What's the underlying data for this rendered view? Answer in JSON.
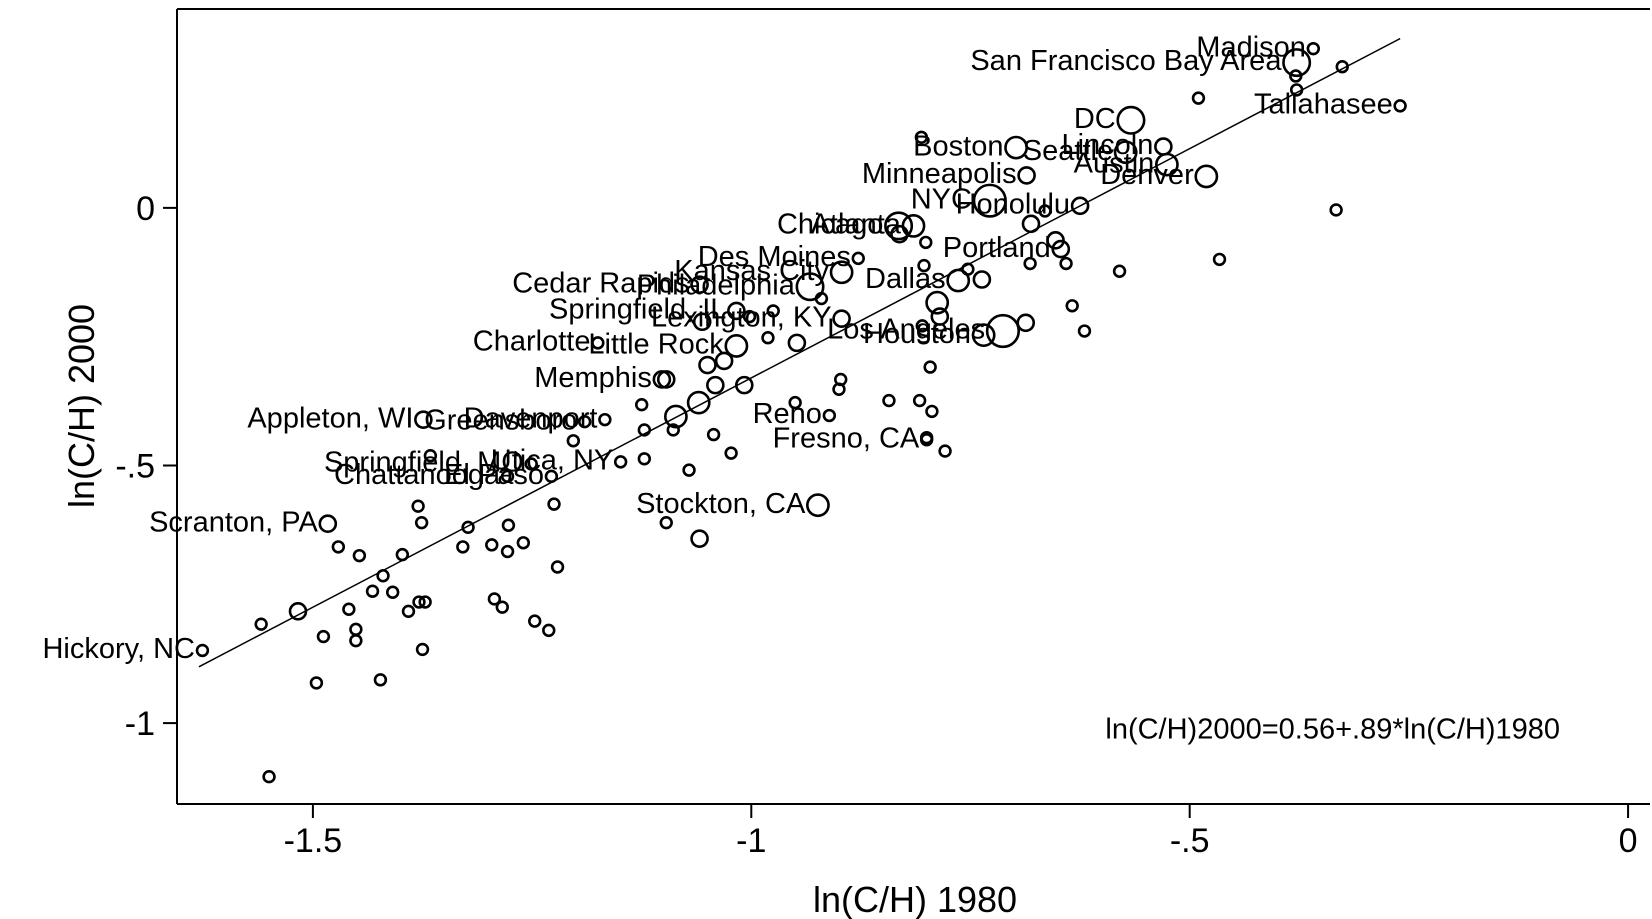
{
  "chart_data": {
    "type": "scatter",
    "x_label": "ln(C/H) 1980",
    "y_label": "ln(C/H) 2000",
    "annotation": "ln(C/H)2000=0.56+.89*ln(C/H)1980",
    "xlim": [
      -1.655,
      0.025
    ],
    "ylim": [
      -1.157,
      0.386
    ],
    "xticks": [
      -1.5,
      -1,
      {
        "value": -0.5,
        "label": "-.5"
      },
      0
    ],
    "yticks": [
      0,
      {
        "value": -0.5,
        "label": "-.5"
      },
      -1
    ],
    "color": "#000000",
    "fit": {
      "intercept": 0.56,
      "slope": 0.89,
      "xlim": [
        -1.63,
        -0.26
      ]
    },
    "points": {
      "labels": [
        "Hickory, NC",
        "Scranton, PA",
        "Chattanooga",
        "Springfield, MO",
        "Utica, NY",
        "El Paso",
        "Appleton, WI",
        "Greensboro",
        "Davenport",
        "Memphis",
        "Charlotte",
        "Little Rock",
        "Lexington, KY",
        "Springfield, IL",
        "Cedar Rapids",
        "Philadelphia",
        "Kansas City",
        "Des Moines",
        "Dallas",
        "Portland",
        "Los Angeles",
        "Houston",
        "Reno",
        "Fresno, CA",
        "Stockton, CA",
        "Atlanta",
        "Chicago",
        "Honolulu",
        "NYC",
        "Minneapolis",
        "Boston",
        "Seattle",
        "Lincoln",
        "Austin",
        "Denver",
        "DC",
        "San Francisco Bay Area",
        "Madison",
        "Tallahasee",
        null,
        null,
        null,
        null,
        null,
        null,
        null,
        null,
        null,
        null,
        null,
        null,
        null,
        null,
        null,
        null,
        null,
        null,
        null,
        null,
        null,
        null,
        null,
        null,
        null,
        null,
        null,
        null,
        null,
        null,
        null,
        null,
        null,
        null,
        null,
        null,
        null,
        null,
        null,
        null,
        null,
        null,
        null,
        null,
        null,
        null,
        null,
        null,
        null,
        null,
        null,
        null,
        null,
        null,
        null,
        null,
        null,
        null,
        null,
        null,
        null,
        null,
        null,
        null,
        null,
        null,
        null,
        null,
        null,
        null,
        null,
        null,
        null,
        null,
        null,
        null,
        null,
        null,
        null,
        null,
        null,
        null,
        null,
        null
      ],
      "x": [
        -1.626,
        -1.483,
        -1.278,
        -1.251,
        -1.149,
        -1.228,
        -1.374,
        -1.19,
        -1.167,
        -1.102,
        -1.175,
        -1.017,
        -0.897,
        -1.017,
        -1.059,
        -0.933,
        -0.897,
        -0.878,
        -0.764,
        -0.647,
        -0.713,
        -0.735,
        -0.911,
        -0.8,
        -0.924,
        -0.815,
        -0.832,
        -0.625,
        -0.728,
        -0.686,
        -0.698,
        -0.573,
        -0.53,
        -0.526,
        -0.481,
        -0.567,
        -0.378,
        -0.359,
        -0.26,
        -1.559,
        -1.517,
        -1.496,
        -1.488,
        -1.471,
        -1.447,
        -1.459,
        -1.451,
        -1.451,
        -1.423,
        -1.432,
        -1.42,
        -1.409,
        -1.398,
        -1.391,
        -1.379,
        -1.372,
        -1.375,
        -1.376,
        -1.38,
        -1.366,
        -1.329,
        -1.323,
        -1.296,
        -1.293,
        -1.284,
        -1.278,
        -1.277,
        -1.26,
        -1.247,
        -1.231,
        -1.221,
        -1.225,
        -1.203,
        -1.125,
        -1.122,
        -1.122,
        -1.097,
        -1.089,
        -1.071,
        -1.059,
        -1.043,
        -1.023,
        -0.95,
        -0.898,
        -0.9,
        -0.843,
        -0.808,
        -0.794,
        -0.779,
        -0.8,
        -0.796,
        -0.805,
        -0.803,
        -0.806,
        -0.634,
        -0.62,
        -0.58,
        -0.466,
        -0.333,
        -0.49,
        -0.326,
        -0.379,
        -0.378,
        -0.681,
        -0.665,
        -0.653,
        -0.641,
        -0.682,
        -0.687,
        -0.737,
        -0.753,
        -0.788,
        -0.785,
        -0.831,
        -0.801,
        -0.981,
        -0.948,
        -1.008,
        -1.031,
        -1.041,
        -1.06,
        -1.05,
        -1.097,
        -1.086,
        -1.056,
        -1.002,
        -0.975,
        -0.92,
        -1.55
      ],
      "y": [
        -0.859,
        -0.613,
        -0.521,
        -0.497,
        -0.493,
        -0.521,
        -0.411,
        -0.415,
        -0.411,
        -0.333,
        -0.262,
        -0.268,
        -0.215,
        -0.2,
        -0.149,
        -0.153,
        -0.125,
        -0.098,
        -0.141,
        -0.08,
        -0.239,
        -0.247,
        -0.403,
        -0.45,
        -0.577,
        -0.035,
        -0.035,
        0.004,
        0.014,
        0.063,
        0.117,
        0.108,
        0.119,
        0.084,
        0.061,
        0.17,
        0.282,
        0.309,
        0.198,
        -0.808,
        -0.783,
        -0.922,
        -0.832,
        -0.658,
        -0.675,
        -0.779,
        -0.818,
        -0.84,
        -0.916,
        -0.744,
        -0.714,
        -0.746,
        -0.673,
        -0.783,
        -0.765,
        -0.765,
        -0.857,
        -0.611,
        -0.579,
        -0.481,
        -0.658,
        -0.62,
        -0.654,
        -0.759,
        -0.775,
        -0.667,
        -0.616,
        -0.65,
        -0.802,
        -0.82,
        -0.697,
        -0.575,
        -0.452,
        -0.382,
        -0.431,
        -0.487,
        -0.611,
        -0.431,
        -0.509,
        -0.642,
        -0.44,
        -0.476,
        -0.378,
        -0.333,
        -0.352,
        -0.374,
        -0.374,
        -0.395,
        -0.472,
        -0.446,
        -0.309,
        -0.229,
        -0.112,
        0.137,
        -0.19,
        -0.239,
        -0.123,
        -0.1,
        -0.004,
        0.213,
        0.274,
        0.256,
        0.229,
        -0.031,
        -0.006,
        -0.063,
        -0.108,
        -0.108,
        -0.223,
        -0.139,
        -0.119,
        -0.184,
        -0.211,
        -0.051,
        -0.067,
        -0.252,
        -0.262,
        -0.344,
        -0.297,
        -0.344,
        -0.378,
        -0.305,
        -0.333,
        -0.405,
        -0.221,
        -0.211,
        -0.2,
        -0.176,
        -1.104
      ],
      "weights": [
        1,
        2,
        1,
        1,
        1,
        1,
        2,
        1,
        1,
        2,
        1,
        3,
        2,
        2,
        2,
        4,
        3,
        1,
        3,
        2,
        5,
        3,
        1,
        1,
        3,
        3,
        4,
        2,
        5,
        2,
        3,
        3,
        2,
        3,
        3,
        4,
        4,
        1,
        1,
        1,
        2,
        1,
        1,
        1,
        1,
        1,
        1,
        1,
        1,
        1,
        1,
        1,
        1,
        1,
        1,
        1,
        1,
        1,
        1,
        1,
        1,
        1,
        1,
        1,
        1,
        1,
        1,
        1,
        1,
        1,
        1,
        1,
        1,
        1,
        1,
        1,
        1,
        1,
        1,
        2,
        1,
        1,
        1,
        1,
        1,
        1,
        1,
        1,
        1,
        1,
        1,
        1,
        1,
        1,
        1,
        1,
        1,
        1,
        1,
        1,
        1,
        1,
        1,
        2,
        1,
        2,
        1,
        1,
        2,
        2,
        1,
        3,
        2,
        2,
        1,
        1,
        2,
        2,
        2,
        2,
        3,
        2,
        2,
        3,
        2,
        1,
        1,
        1,
        1,
        1
      ]
    }
  }
}
